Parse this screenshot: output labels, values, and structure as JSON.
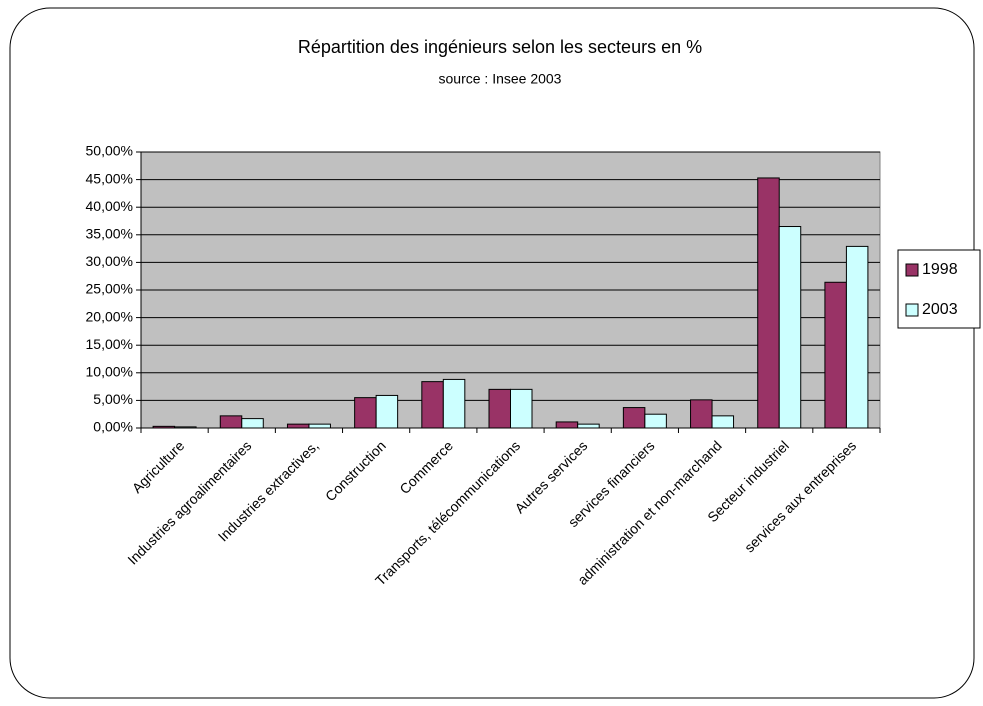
{
  "chart_data": {
    "type": "bar",
    "title": "Répartition des ingénieurs selon les secteurs en %",
    "subtitle": "source : Insee 2003",
    "categories": [
      "Agriculture",
      "Industries agroalimentaires",
      "Industries extractives,",
      "Construction",
      "Commerce",
      "Transports, télécommunications",
      "Autres services",
      "services financiers",
      "administration et non-marchand",
      "Secteur industriel",
      "services aux entreprises"
    ],
    "series": [
      {
        "name": "1998",
        "color": "#993366",
        "values": [
          0.3,
          2.2,
          0.7,
          5.5,
          8.4,
          7.0,
          1.1,
          3.7,
          5.1,
          45.3,
          26.4
        ]
      },
      {
        "name": "2003",
        "color": "#ccffff",
        "values": [
          0.2,
          1.7,
          0.7,
          5.9,
          8.8,
          7.0,
          0.7,
          2.5,
          2.2,
          36.5,
          32.9
        ]
      }
    ],
    "ylim": [
      0,
      50
    ],
    "yticks": [
      {
        "value": 0,
        "label": "0,00%"
      },
      {
        "value": 5,
        "label": "5,00%"
      },
      {
        "value": 10,
        "label": "10,00%"
      },
      {
        "value": 15,
        "label": "15,00%"
      },
      {
        "value": 20,
        "label": "20,00%"
      },
      {
        "value": 25,
        "label": "25,00%"
      },
      {
        "value": 30,
        "label": "30,00%"
      },
      {
        "value": 35,
        "label": "35,00%"
      },
      {
        "value": 40,
        "label": "40,00%"
      },
      {
        "value": 45,
        "label": "45,00%"
      },
      {
        "value": 50,
        "label": "50,00%"
      }
    ],
    "grid": true,
    "legend": "right",
    "plot_background": "#c0c0c0"
  }
}
